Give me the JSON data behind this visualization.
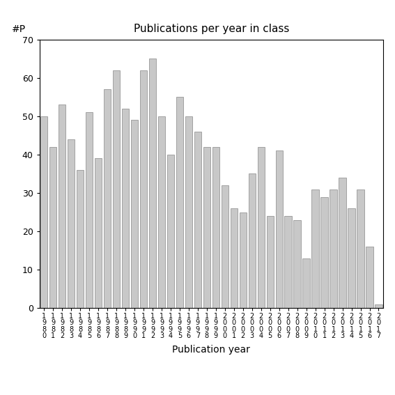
{
  "title": "Publications per year in class",
  "xlabel": "Publication year",
  "ylabel": "#P",
  "bar_color": "#c8c8c8",
  "bar_edgecolor": "#888888",
  "ylim": [
    0,
    70
  ],
  "yticks": [
    0,
    10,
    20,
    30,
    40,
    50,
    60,
    70
  ],
  "categories": [
    "1\n9\n8\n0",
    "1\n9\n8\n1",
    "1\n9\n8\n2",
    "1\n9\n8\n3",
    "1\n9\n8\n4",
    "1\n9\n8\n5",
    "1\n9\n8\n6",
    "1\n9\n8\n7",
    "1\n9\n8\n8",
    "1\n9\n8\n9",
    "1\n9\n9\n0",
    "1\n9\n9\n1",
    "1\n9\n9\n2",
    "1\n9\n9\n3",
    "1\n9\n9\n4",
    "1\n9\n9\n5",
    "1\n9\n9\n6",
    "1\n9\n9\n7",
    "1\n9\n9\n8",
    "1\n9\n9\n9",
    "2\n0\n0\n0",
    "2\n0\n0\n1",
    "2\n0\n0\n2",
    "2\n0\n0\n3",
    "2\n0\n0\n4",
    "2\n0\n0\n5",
    "2\n0\n0\n6",
    "2\n0\n0\n7",
    "2\n0\n0\n8",
    "2\n0\n0\n9",
    "2\n0\n1\n0",
    "2\n0\n1\n1",
    "2\n0\n1\n2",
    "2\n0\n1\n3",
    "2\n0\n1\n4",
    "2\n0\n1\n5",
    "2\n0\n1\n6",
    "2\n0\n1\n7"
  ],
  "values": [
    50,
    42,
    53,
    44,
    36,
    51,
    39,
    57,
    62,
    52,
    49,
    62,
    65,
    50,
    40,
    55,
    50,
    46,
    42,
    42,
    32,
    26,
    25,
    35,
    42,
    24,
    41,
    24,
    23,
    13,
    31,
    29,
    31,
    34,
    26,
    31,
    16,
    1
  ],
  "figsize": [
    5.67,
    5.67
  ],
  "dpi": 100
}
